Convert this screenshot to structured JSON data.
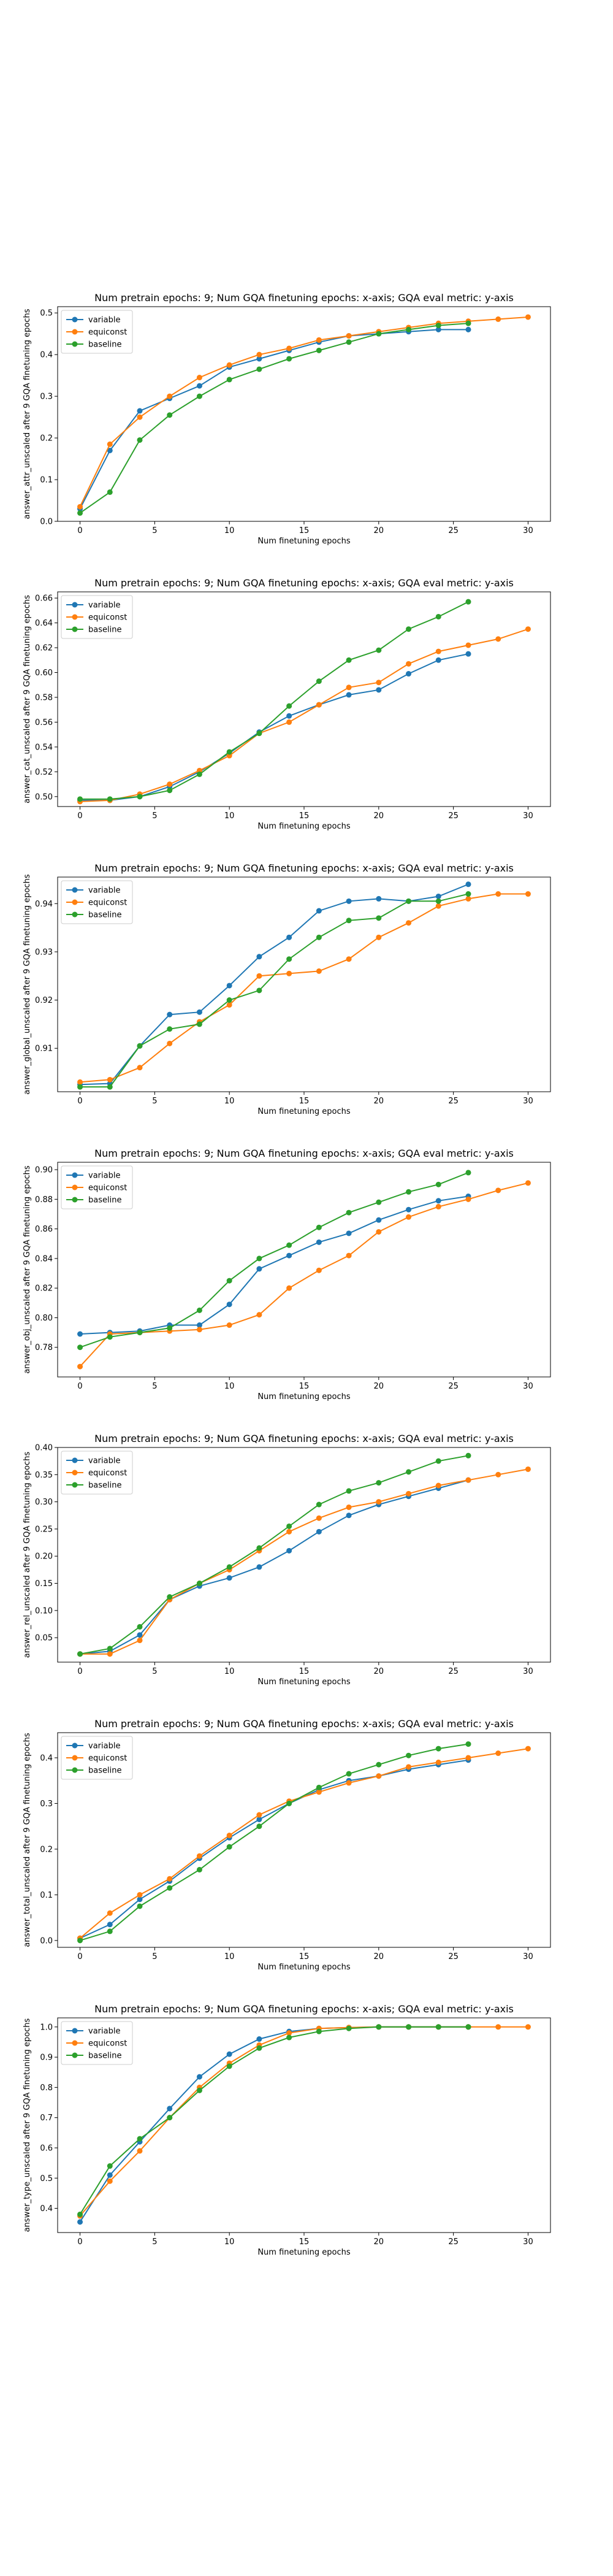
{
  "chart_data": [
    {
      "type": "line",
      "title": "Num pretrain epochs: 9; Num GQA finetuning epochs: x-axis; GQA eval metric: y-axis",
      "xlabel": "Num finetuning epochs",
      "ylabel": "answer_attr_unscaled after 9 GQA finetuning epochs",
      "xlim": [
        -1.5,
        31.5
      ],
      "ylim": [
        0.0,
        0.515
      ],
      "xticks": [
        0,
        5,
        10,
        15,
        20,
        25,
        30
      ],
      "yticks": [
        0.0,
        0.1,
        0.2,
        0.3,
        0.4,
        0.5
      ],
      "ytick_labels": [
        "0.0",
        "0.1",
        "0.2",
        "0.3",
        "0.4",
        "0.5"
      ],
      "legend": "upper-left",
      "series": [
        {
          "name": "variable",
          "color": "#1f77b4",
          "x": [
            0,
            2,
            4,
            6,
            8,
            10,
            12,
            14,
            16,
            18,
            20,
            22,
            24,
            26
          ],
          "y": [
            0.03,
            0.17,
            0.265,
            0.295,
            0.325,
            0.37,
            0.39,
            0.41,
            0.43,
            0.445,
            0.45,
            0.455,
            0.46,
            0.46
          ]
        },
        {
          "name": "equiconst",
          "color": "#ff7f0e",
          "x": [
            0,
            2,
            4,
            6,
            8,
            10,
            12,
            14,
            16,
            18,
            20,
            22,
            24,
            26,
            28,
            30
          ],
          "y": [
            0.035,
            0.185,
            0.25,
            0.3,
            0.345,
            0.375,
            0.4,
            0.415,
            0.435,
            0.445,
            0.455,
            0.465,
            0.475,
            0.48,
            0.485,
            0.49
          ]
        },
        {
          "name": "baseline",
          "color": "#2ca02c",
          "x": [
            0,
            2,
            4,
            6,
            8,
            10,
            12,
            14,
            16,
            18,
            20,
            22,
            24,
            26
          ],
          "y": [
            0.02,
            0.07,
            0.195,
            0.255,
            0.3,
            0.34,
            0.365,
            0.39,
            0.41,
            0.43,
            0.45,
            0.46,
            0.47,
            0.475
          ]
        }
      ]
    },
    {
      "type": "line",
      "title": "Num pretrain epochs: 9; Num GQA finetuning epochs: x-axis; GQA eval metric: y-axis",
      "xlabel": "Num finetuning epochs",
      "ylabel": "answer_cat_unscaled after 9 GQA finetuning epochs",
      "xlim": [
        -1.5,
        31.5
      ],
      "ylim": [
        0.492,
        0.665
      ],
      "xticks": [
        0,
        5,
        10,
        15,
        20,
        25,
        30
      ],
      "yticks": [
        0.5,
        0.52,
        0.54,
        0.56,
        0.58,
        0.6,
        0.62,
        0.64,
        0.66
      ],
      "ytick_labels": [
        "0.50",
        "0.52",
        "0.54",
        "0.56",
        "0.58",
        "0.60",
        "0.62",
        "0.64",
        "0.66"
      ],
      "legend": "upper-left",
      "series": [
        {
          "name": "variable",
          "color": "#1f77b4",
          "x": [
            0,
            2,
            4,
            6,
            8,
            10,
            12,
            14,
            16,
            18,
            20,
            22,
            24,
            26
          ],
          "y": [
            0.497,
            0.497,
            0.5,
            0.508,
            0.52,
            0.535,
            0.552,
            0.565,
            0.574,
            0.582,
            0.586,
            0.599,
            0.61,
            0.615
          ]
        },
        {
          "name": "equiconst",
          "color": "#ff7f0e",
          "x": [
            0,
            2,
            4,
            6,
            8,
            10,
            12,
            14,
            16,
            18,
            20,
            22,
            24,
            26,
            28,
            30
          ],
          "y": [
            0.496,
            0.497,
            0.502,
            0.51,
            0.521,
            0.533,
            0.551,
            0.56,
            0.574,
            0.588,
            0.592,
            0.607,
            0.617,
            0.622,
            0.627,
            0.635
          ]
        },
        {
          "name": "baseline",
          "color": "#2ca02c",
          "x": [
            0,
            2,
            4,
            6,
            8,
            10,
            12,
            14,
            16,
            18,
            20,
            22,
            24,
            26
          ],
          "y": [
            0.498,
            0.498,
            0.5,
            0.505,
            0.518,
            0.536,
            0.551,
            0.573,
            0.593,
            0.61,
            0.618,
            0.635,
            0.645,
            0.657
          ]
        }
      ]
    },
    {
      "type": "line",
      "title": "Num pretrain epochs: 9; Num GQA finetuning epochs: x-axis; GQA eval metric: y-axis",
      "xlabel": "Num finetuning epochs",
      "ylabel": "answer_global_unscaled after 9 GQA finetuning epochs",
      "xlim": [
        -1.5,
        31.5
      ],
      "ylim": [
        0.901,
        0.9455
      ],
      "xticks": [
        0,
        5,
        10,
        15,
        20,
        25,
        30
      ],
      "yticks": [
        0.91,
        0.92,
        0.93,
        0.94
      ],
      "ytick_labels": [
        "0.91",
        "0.92",
        "0.93",
        "0.94"
      ],
      "legend": "upper-left",
      "series": [
        {
          "name": "variable",
          "color": "#1f77b4",
          "x": [
            0,
            2,
            4,
            6,
            8,
            10,
            12,
            14,
            16,
            18,
            20,
            22,
            24,
            26
          ],
          "y": [
            0.9025,
            0.9027,
            0.9105,
            0.917,
            0.9175,
            0.923,
            0.929,
            0.933,
            0.9385,
            0.9405,
            0.941,
            0.9405,
            0.9415,
            0.944
          ]
        },
        {
          "name": "equiconst",
          "color": "#ff7f0e",
          "x": [
            0,
            2,
            4,
            6,
            8,
            10,
            12,
            14,
            16,
            18,
            20,
            22,
            24,
            26,
            28,
            30
          ],
          "y": [
            0.903,
            0.9035,
            0.906,
            0.911,
            0.9155,
            0.919,
            0.925,
            0.9255,
            0.926,
            0.9285,
            0.933,
            0.936,
            0.9395,
            0.941,
            0.942,
            0.942
          ]
        },
        {
          "name": "baseline",
          "color": "#2ca02c",
          "x": [
            0,
            2,
            4,
            6,
            8,
            10,
            12,
            14,
            16,
            18,
            20,
            22,
            24,
            26
          ],
          "y": [
            0.902,
            0.902,
            0.9105,
            0.914,
            0.915,
            0.92,
            0.922,
            0.9285,
            0.933,
            0.9365,
            0.937,
            0.9405,
            0.9405,
            0.942
          ]
        }
      ]
    },
    {
      "type": "line",
      "title": "Num pretrain epochs: 9; Num GQA finetuning epochs: x-axis; GQA eval metric: y-axis",
      "xlabel": "Num finetuning epochs",
      "ylabel": "answer_obj_unscaled after 9 GQA finetuning epochs",
      "xlim": [
        -1.5,
        31.5
      ],
      "ylim": [
        0.76,
        0.905
      ],
      "xticks": [
        0,
        5,
        10,
        15,
        20,
        25,
        30
      ],
      "yticks": [
        0.78,
        0.8,
        0.82,
        0.84,
        0.86,
        0.88,
        0.9
      ],
      "ytick_labels": [
        "0.78",
        "0.80",
        "0.82",
        "0.84",
        "0.86",
        "0.88",
        "0.90"
      ],
      "legend": "upper-left",
      "series": [
        {
          "name": "variable",
          "color": "#1f77b4",
          "x": [
            0,
            2,
            4,
            6,
            8,
            10,
            12,
            14,
            16,
            18,
            20,
            22,
            24,
            26
          ],
          "y": [
            0.789,
            0.79,
            0.791,
            0.795,
            0.795,
            0.809,
            0.833,
            0.842,
            0.851,
            0.857,
            0.866,
            0.873,
            0.879,
            0.882
          ]
        },
        {
          "name": "equiconst",
          "color": "#ff7f0e",
          "x": [
            0,
            2,
            4,
            6,
            8,
            10,
            12,
            14,
            16,
            18,
            20,
            22,
            24,
            26,
            28,
            30
          ],
          "y": [
            0.767,
            0.789,
            0.79,
            0.791,
            0.792,
            0.795,
            0.802,
            0.82,
            0.832,
            0.842,
            0.858,
            0.868,
            0.875,
            0.88,
            0.886,
            0.891
          ]
        },
        {
          "name": "baseline",
          "color": "#2ca02c",
          "x": [
            0,
            2,
            4,
            6,
            8,
            10,
            12,
            14,
            16,
            18,
            20,
            22,
            24,
            26
          ],
          "y": [
            0.78,
            0.787,
            0.79,
            0.793,
            0.805,
            0.825,
            0.84,
            0.849,
            0.861,
            0.871,
            0.878,
            0.885,
            0.89,
            0.898
          ]
        }
      ]
    },
    {
      "type": "line",
      "title": "Num pretrain epochs: 9; Num GQA finetuning epochs: x-axis; GQA eval metric: y-axis",
      "xlabel": "Num finetuning epochs",
      "ylabel": "answer_rel_unscaled after 9 GQA finetuning epochs",
      "xlim": [
        -1.5,
        31.5
      ],
      "ylim": [
        0.005,
        0.4
      ],
      "xticks": [
        0,
        5,
        10,
        15,
        20,
        25,
        30
      ],
      "yticks": [
        0.05,
        0.1,
        0.15,
        0.2,
        0.25,
        0.3,
        0.35,
        0.4
      ],
      "ytick_labels": [
        "0.05",
        "0.10",
        "0.15",
        "0.20",
        "0.25",
        "0.30",
        "0.35",
        "0.40"
      ],
      "legend": "upper-left",
      "series": [
        {
          "name": "variable",
          "color": "#1f77b4",
          "x": [
            0,
            2,
            4,
            6,
            8,
            10,
            12,
            14,
            16,
            18,
            20,
            22,
            24,
            26
          ],
          "y": [
            0.02,
            0.025,
            0.055,
            0.12,
            0.145,
            0.16,
            0.18,
            0.21,
            0.245,
            0.275,
            0.295,
            0.31,
            0.325,
            0.34
          ]
        },
        {
          "name": "equiconst",
          "color": "#ff7f0e",
          "x": [
            0,
            2,
            4,
            6,
            8,
            10,
            12,
            14,
            16,
            18,
            20,
            22,
            24,
            26,
            28,
            30
          ],
          "y": [
            0.02,
            0.02,
            0.045,
            0.12,
            0.15,
            0.175,
            0.21,
            0.245,
            0.27,
            0.29,
            0.3,
            0.315,
            0.33,
            0.34,
            0.35,
            0.36
          ]
        },
        {
          "name": "baseline",
          "color": "#2ca02c",
          "x": [
            0,
            2,
            4,
            6,
            8,
            10,
            12,
            14,
            16,
            18,
            20,
            22,
            24,
            26
          ],
          "y": [
            0.02,
            0.03,
            0.07,
            0.125,
            0.15,
            0.18,
            0.215,
            0.255,
            0.295,
            0.32,
            0.335,
            0.355,
            0.375,
            0.385
          ]
        }
      ]
    },
    {
      "type": "line",
      "title": "Num pretrain epochs: 9; Num GQA finetuning epochs: x-axis; GQA eval metric: y-axis",
      "xlabel": "Num finetuning epochs",
      "ylabel": "answer_total_unscaled after 9 GQA finetuning epochs",
      "xlim": [
        -1.5,
        31.5
      ],
      "ylim": [
        -0.015,
        0.455
      ],
      "xticks": [
        0,
        5,
        10,
        15,
        20,
        25,
        30
      ],
      "yticks": [
        0.0,
        0.1,
        0.2,
        0.3,
        0.4
      ],
      "ytick_labels": [
        "0.0",
        "0.1",
        "0.2",
        "0.3",
        "0.4"
      ],
      "legend": "upper-left",
      "series": [
        {
          "name": "variable",
          "color": "#1f77b4",
          "x": [
            0,
            2,
            4,
            6,
            8,
            10,
            12,
            14,
            16,
            18,
            20,
            22,
            24,
            26
          ],
          "y": [
            0.005,
            0.035,
            0.09,
            0.13,
            0.18,
            0.225,
            0.265,
            0.3,
            0.33,
            0.35,
            0.36,
            0.375,
            0.385,
            0.395
          ]
        },
        {
          "name": "equiconst",
          "color": "#ff7f0e",
          "x": [
            0,
            2,
            4,
            6,
            8,
            10,
            12,
            14,
            16,
            18,
            20,
            22,
            24,
            26,
            28,
            30
          ],
          "y": [
            0.005,
            0.06,
            0.1,
            0.135,
            0.185,
            0.23,
            0.275,
            0.305,
            0.325,
            0.345,
            0.36,
            0.38,
            0.39,
            0.4,
            0.41,
            0.42
          ]
        },
        {
          "name": "baseline",
          "color": "#2ca02c",
          "x": [
            0,
            2,
            4,
            6,
            8,
            10,
            12,
            14,
            16,
            18,
            20,
            22,
            24,
            26
          ],
          "y": [
            0.0,
            0.02,
            0.075,
            0.115,
            0.155,
            0.205,
            0.25,
            0.3,
            0.335,
            0.365,
            0.385,
            0.405,
            0.42,
            0.43
          ]
        }
      ]
    },
    {
      "type": "line",
      "title": "Num pretrain epochs: 9; Num GQA finetuning epochs: x-axis; GQA eval metric: y-axis",
      "xlabel": "Num finetuning epochs",
      "ylabel": "answer_type_unscaled after 9 GQA finetuning epochs",
      "xlim": [
        -1.5,
        31.5
      ],
      "ylim": [
        0.32,
        1.03
      ],
      "xticks": [
        0,
        5,
        10,
        15,
        20,
        25,
        30
      ],
      "yticks": [
        0.4,
        0.5,
        0.6,
        0.7,
        0.8,
        0.9,
        1.0
      ],
      "ytick_labels": [
        "0.4",
        "0.5",
        "0.6",
        "0.7",
        "0.8",
        "0.9",
        "1.0"
      ],
      "legend": "upper-left",
      "series": [
        {
          "name": "variable",
          "color": "#1f77b4",
          "x": [
            0,
            2,
            4,
            6,
            8,
            10,
            12,
            14,
            16,
            18,
            20,
            22,
            24,
            26
          ],
          "y": [
            0.355,
            0.51,
            0.62,
            0.73,
            0.835,
            0.91,
            0.96,
            0.985,
            0.995,
            0.998,
            1.0,
            1.0,
            1.0,
            1.0
          ]
        },
        {
          "name": "equiconst",
          "color": "#ff7f0e",
          "x": [
            0,
            2,
            4,
            6,
            8,
            10,
            12,
            14,
            16,
            18,
            20,
            22,
            24,
            26,
            28,
            30
          ],
          "y": [
            0.375,
            0.49,
            0.59,
            0.7,
            0.8,
            0.88,
            0.94,
            0.98,
            0.995,
            0.998,
            1.0,
            1.0,
            1.0,
            1.0,
            1.0,
            1.0
          ]
        },
        {
          "name": "baseline",
          "color": "#2ca02c",
          "x": [
            0,
            2,
            4,
            6,
            8,
            10,
            12,
            14,
            16,
            18,
            20,
            22,
            24,
            26
          ],
          "y": [
            0.38,
            0.54,
            0.63,
            0.7,
            0.79,
            0.87,
            0.93,
            0.965,
            0.985,
            0.995,
            1.0,
            1.0,
            1.0,
            1.0
          ]
        }
      ]
    }
  ]
}
